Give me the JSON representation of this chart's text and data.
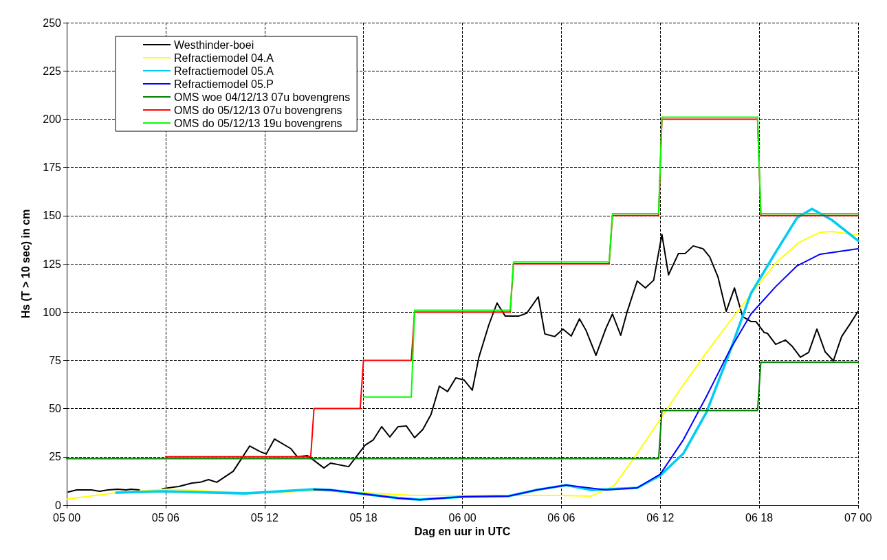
{
  "chart_data": {
    "type": "line",
    "xlabel": "Dag en uur in UTC",
    "ylabel": "Hs (T > 10 sec) in cm",
    "xlim": [
      "--12-05T00:00",
      "--12-07T00:00"
    ],
    "xticks": [
      {
        "value": "--12-05T00:00",
        "label": "05 00"
      },
      {
        "value": "--12-05T06:00",
        "label": "05 06"
      },
      {
        "value": "--12-05T12:00",
        "label": "05 12"
      },
      {
        "value": "--12-05T18:00",
        "label": "05 18"
      },
      {
        "value": "--12-06T00:00",
        "label": "06 00"
      },
      {
        "value": "--12-06T06:00",
        "label": "06 06"
      },
      {
        "value": "--12-06T12:00",
        "label": "06 12"
      },
      {
        "value": "--12-06T18:00",
        "label": "06 18"
      },
      {
        "value": "--12-07T00:00",
        "label": "07 00"
      }
    ],
    "ylim": [
      0,
      250
    ],
    "yticks": [
      0,
      25,
      50,
      75,
      100,
      125,
      150,
      175,
      200,
      225,
      250
    ],
    "grid": true,
    "legend": "top left",
    "marker": "none",
    "line_style": "solid",
    "series": [
      {
        "name": "Westhinder-boei",
        "color": "#000000",
        "x": [
          "--12-05T00:06",
          "--12-05T00:36",
          "--12-05T01:30",
          "--12-05T02:00",
          "--12-05T02:30",
          "--12-05T03:06",
          "--12-05T03:36",
          "--12-05T03:54",
          "--12-05T04:24",
          "--12-05T05:00",
          "--12-05T05:48",
          "--12-05T06:48",
          "--12-05T07:36",
          "--12-05T08:06",
          "--12-05T08:36",
          "--12-05T09:06",
          "--12-05T10:06",
          "--12-05T10:36",
          "--12-05T11:06",
          "--12-05T11:42",
          "--12-05T12:06",
          "--12-05T12:36",
          "--12-05T13:36",
          "--12-05T14:00",
          "--12-05T14:36",
          "--12-05T15:00",
          "--12-05T15:36",
          "--12-05T16:00",
          "--12-05T17:06",
          "--12-05T18:06",
          "--12-05T18:36",
          "--12-05T19:06",
          "--12-05T19:36",
          "--12-05T20:06",
          "--12-05T20:36",
          "--12-05T21:06",
          "--12-05T21:36",
          "--12-05T22:06",
          "--12-05T22:36",
          "--12-05T23:06",
          "--12-05T23:36",
          "--12-06T00:06",
          "--12-06T00:36",
          "--12-06T01:00",
          "--12-06T01:36",
          "--12-06T02:06",
          "--12-06T02:36",
          "--12-06T03:24",
          "--12-06T03:54",
          "--12-06T04:36",
          "--12-06T05:00",
          "--12-06T05:36",
          "--12-06T06:06",
          "--12-06T06:36",
          "--12-06T07:06",
          "--12-06T07:30",
          "--12-06T08:06",
          "--12-06T08:42",
          "--12-06T09:06",
          "--12-06T09:36",
          "--12-06T10:00",
          "--12-06T10:36",
          "--12-06T11:06",
          "--12-06T11:36",
          "--12-06T12:06",
          "--12-06T12:30",
          "--12-06T13:06",
          "--12-06T13:30",
          "--12-06T14:00",
          "--12-06T14:36",
          "--12-06T15:00",
          "--12-06T15:30",
          "--12-06T16:00",
          "--12-06T16:30",
          "--12-06T17:00",
          "--12-06T17:30",
          "--12-06T17:48",
          "--12-06T18:18",
          "--12-06T18:30",
          "--12-06T19:00",
          "--12-06T19:36",
          "--12-06T20:00",
          "--12-06T20:30",
          "--12-06T21:00",
          "--12-06T21:30",
          "--12-06T22:00",
          "--12-06T22:30",
          "--12-06T23:00",
          "--12-06T23:30",
          "--12-07T00:00"
        ],
        "values": [
          6.8,
          7.8,
          7.8,
          7.1,
          7.8,
          8.2,
          7.8,
          8.2,
          7.8,
          null,
          8.5,
          9.6,
          11.4,
          11.8,
          13.2,
          11.8,
          17.5,
          24,
          30.6,
          27.8,
          26.4,
          34.2,
          29.2,
          24.9,
          25.6,
          23.1,
          19.2,
          21.7,
          19.9,
          31,
          33.8,
          40.6,
          35.3,
          40.6,
          41,
          34.9,
          39.2,
          47,
          61.6,
          58.8,
          65.9,
          64.8,
          59.5,
          76.6,
          93.3,
          104.7,
          97.9,
          97.9,
          99.4,
          107.9,
          88.7,
          87.3,
          91.2,
          87.6,
          96.5,
          90.5,
          77.6,
          91.5,
          99,
          88,
          100.4,
          116.1,
          112.5,
          116.5,
          140.3,
          119.3,
          130.3,
          130.3,
          134.3,
          132.8,
          128.6,
          118.2,
          100.4,
          112.5,
          97.6,
          95.1,
          95.1,
          89.4,
          89,
          83.3,
          85.5,
          82.3,
          76.6,
          79.1,
          91.2,
          79.4,
          74.8,
          87.3,
          93.7,
          100.4
        ]
      },
      {
        "name": "Refractiemodel 04.A",
        "color": "#ffff00",
        "x": [
          "--12-05T00:00",
          "--12-05T03:00",
          "--12-05T06:00",
          "--12-05T09:00",
          "--12-05T12:00",
          "--12-05T15:00",
          "--12-05T18:00",
          "--12-05T21:00",
          "--12-06T00:00",
          "--12-06T03:00",
          "--12-06T06:00",
          "--12-06T07:48",
          "--12-06T09:12",
          "--12-06T10:36",
          "--12-06T12:00",
          "--12-06T13:24",
          "--12-06T14:48",
          "--12-06T16:12",
          "--12-06T17:36",
          "--12-06T19:00",
          "--12-06T20:24",
          "--12-06T21:42",
          "--12-06T22:24",
          "--12-07T00:00"
        ],
        "values": [
          3,
          6.4,
          8.2,
          7,
          6.2,
          7.5,
          6.4,
          5,
          5,
          5,
          5,
          4.6,
          10,
          26.7,
          44.5,
          62.3,
          79,
          95,
          110.4,
          125.4,
          136,
          141.4,
          141.7,
          140
        ]
      },
      {
        "name": "Refractiemodel 05.A",
        "color": "#00ccf5",
        "x": [
          "--12-05T03:00",
          "--12-05T05:48",
          "--12-05T10:48",
          "--12-05T15:00",
          "--12-05T16:00",
          "--12-05T20:06",
          "--12-05T21:24",
          "--12-06T00:00",
          "--12-06T02:48",
          "--12-06T04:30",
          "--12-06T06:18",
          "--12-06T07:48",
          "--12-06T10:36",
          "--12-06T12:00",
          "--12-06T13:24",
          "--12-06T14:48",
          "--12-06T16:12",
          "--12-06T17:30",
          "--12-06T19:00",
          "--12-06T20:18",
          "--12-06T21:12",
          "--12-06T22:24",
          "--12-07T00:00"
        ],
        "values": [
          6.4,
          7.1,
          6,
          8.2,
          7.8,
          3.6,
          2.8,
          4.3,
          4.6,
          7.8,
          10.3,
          7.8,
          8.9,
          15.3,
          26.7,
          48,
          79,
          109.7,
          131,
          148.9,
          153.5,
          147.8,
          137
        ]
      },
      {
        "name": "Refractiemodel 05.P",
        "color": "#0000ff",
        "x": [
          "--12-05T15:00",
          "--12-05T16:00",
          "--12-05T20:06",
          "--12-05T21:24",
          "--12-06T00:00",
          "--12-06T02:48",
          "--12-06T04:30",
          "--12-06T06:18",
          "--12-06T08:42",
          "--12-06T10:36",
          "--12-06T12:00",
          "--12-06T13:24",
          "--12-06T14:48",
          "--12-06T16:12",
          "--12-06T17:30",
          "--12-06T19:00",
          "--12-06T20:18",
          "--12-06T21:42",
          "--12-07T00:00"
        ],
        "values": [
          8,
          7.8,
          3.6,
          2.8,
          4.3,
          4.6,
          7.8,
          10.3,
          7.8,
          8.9,
          16,
          33.8,
          56.3,
          80,
          99,
          113.2,
          124,
          130,
          132.8
        ]
      },
      {
        "name": "OMS woe 04/12/13 07u bovengrens",
        "color": "#008000",
        "x": [
          "--12-05T00:00",
          "--12-06T11:54",
          "--12-06T12:06",
          "--12-06T17:54",
          "--12-06T18:06",
          "--12-07T00:00"
        ],
        "values": [
          24,
          24,
          49,
          49,
          74,
          74
        ]
      },
      {
        "name": "OMS do 05/12/13 07u bovengrens",
        "color": "#ff0000",
        "x": [
          "--12-05T06:00",
          "--12-05T14:48",
          "--12-05T15:00",
          "--12-05T17:48",
          "--12-05T18:00",
          "--12-05T20:54",
          "--12-05T21:06",
          "--12-06T02:54",
          "--12-06T03:06",
          "--12-06T08:54",
          "--12-06T09:06",
          "--12-06T11:54",
          "--12-06T12:06",
          "--12-06T17:54",
          "--12-06T18:06",
          "--12-07T00:00"
        ],
        "values": [
          25,
          25,
          50,
          50,
          75,
          75,
          100,
          100,
          125,
          125,
          150,
          150,
          200,
          200,
          150,
          150
        ]
      },
      {
        "name": "OMS do 05/12/13 19u bovengrens",
        "color": "#00ff00",
        "x": [
          "--12-05T18:00",
          "--12-05T20:54",
          "--12-05T21:06",
          "--12-06T02:54",
          "--12-06T03:06",
          "--12-06T08:54",
          "--12-06T09:06",
          "--12-06T11:54",
          "--12-06T12:06",
          "--12-06T17:54",
          "--12-06T18:06",
          "--12-07T00:00"
        ],
        "values": [
          56,
          56,
          101,
          101,
          126,
          126,
          151,
          151,
          201,
          201,
          151,
          151
        ]
      }
    ]
  }
}
